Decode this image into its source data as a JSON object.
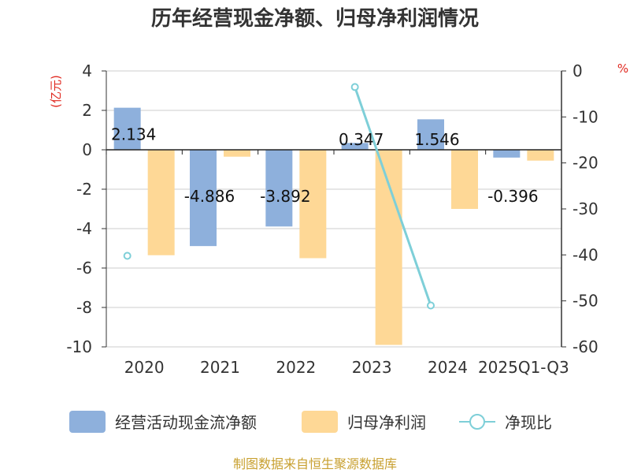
{
  "title": "历年经营现金净额、归母净利润情况",
  "source": "制图数据来自恒生聚源数据库",
  "left_unit": "(亿元)",
  "right_unit": "%",
  "colors": {
    "cash": "#8eb0dc",
    "profit": "#fed896",
    "ratio": "#7ecfd8",
    "unit": "#e0271e",
    "source": "#c8a030"
  },
  "chart_data": {
    "type": "bar",
    "categories": [
      "2020",
      "2021",
      "2022",
      "2023",
      "2024",
      "2025Q1-Q3"
    ],
    "left_axis": {
      "ylim": [
        -10,
        4
      ],
      "ticks": [
        "4",
        "2",
        "0",
        "-2",
        "-4",
        "-6",
        "-8",
        "-10"
      ]
    },
    "right_axis": {
      "ylim": [
        -60,
        0
      ],
      "ticks": [
        "0",
        "-10",
        "-20",
        "-30",
        "-40",
        "-50",
        "-60"
      ]
    },
    "series": [
      {
        "name": "经营活动现金流净额",
        "type": "bar",
        "axis": "left",
        "values": [
          2.134,
          -4.886,
          -3.892,
          0.347,
          1.546,
          -0.396
        ],
        "labels": [
          "2.134",
          "-4.886",
          "-3.892",
          "0.347",
          "1.546",
          "-0.396"
        ]
      },
      {
        "name": "归母净利润",
        "type": "bar",
        "axis": "left",
        "values": [
          -5.35,
          -0.35,
          -5.5,
          -9.9,
          -3.0,
          -0.55
        ]
      },
      {
        "name": "净现比",
        "type": "line",
        "axis": "right",
        "values": [
          -40.2,
          null,
          null,
          -3.5,
          -51.0,
          null
        ]
      }
    ],
    "legend_position": "bottom",
    "grid": true
  }
}
